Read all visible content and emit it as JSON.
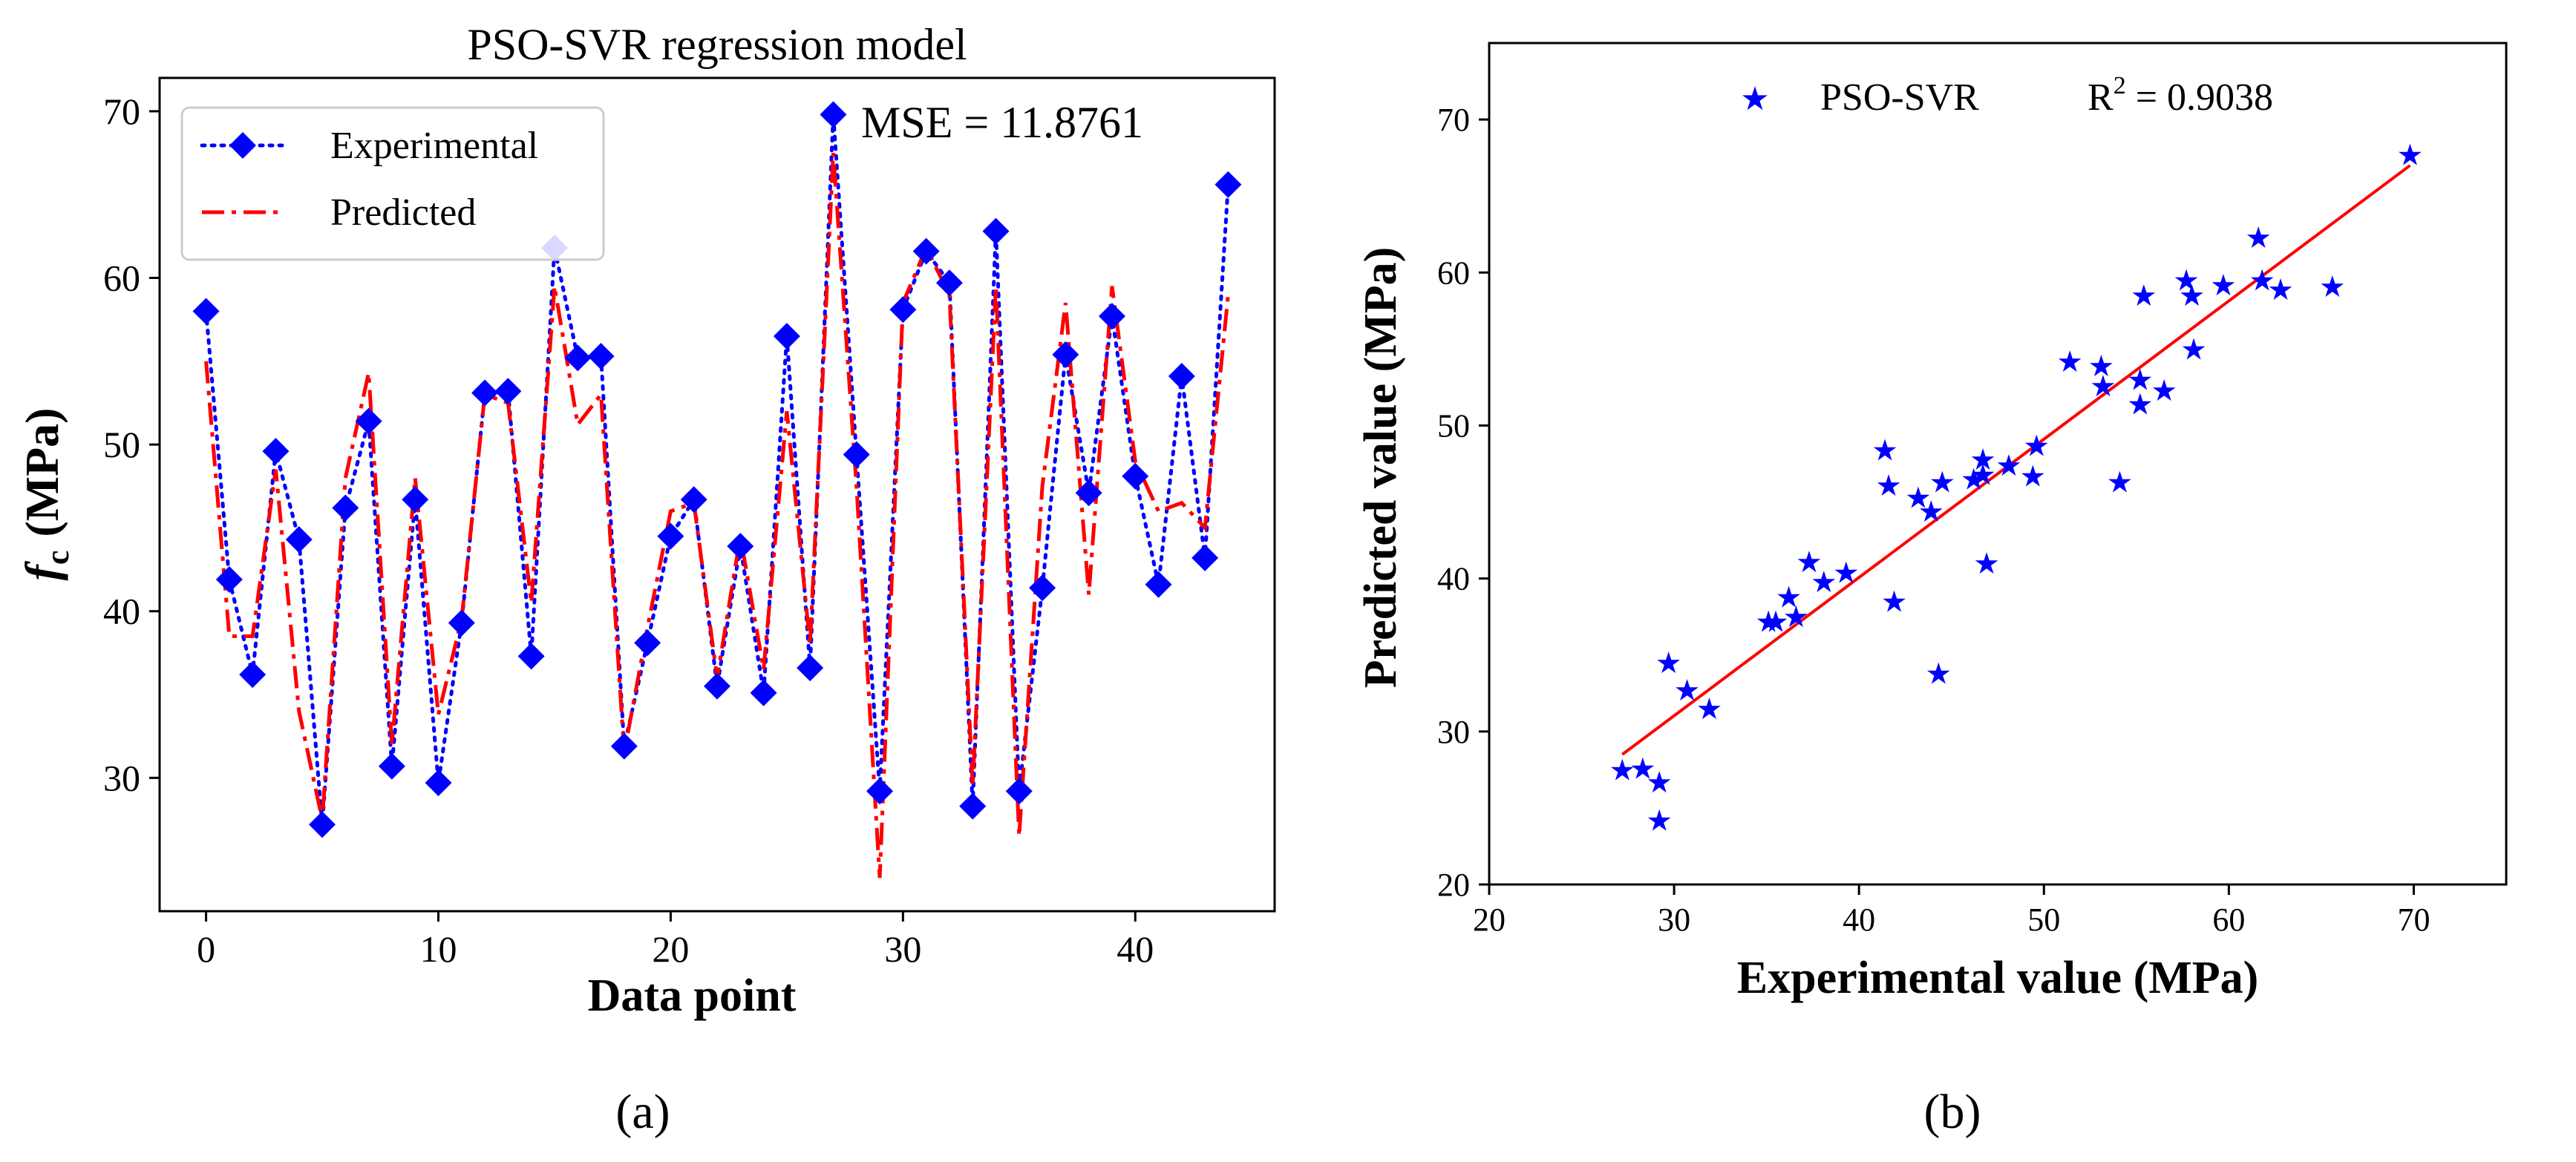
{
  "panels": {
    "a_label": "(a)",
    "b_label": "(b)"
  },
  "chart_data": [
    {
      "type": "line",
      "title": "PSO-SVR regression model",
      "xlabel": "Data point",
      "ylabel_main": "f",
      "ylabel_sub": "c",
      "ylabel_unit": "(MPa)",
      "xlim": [
        -2,
        46
      ],
      "ylim": [
        22,
        72
      ],
      "xticks": [
        0,
        10,
        20,
        30,
        40
      ],
      "yticks": [
        30,
        40,
        50,
        60,
        70
      ],
      "annotation": "MSE = 11.8761",
      "legend_position": "top-left",
      "series": [
        {
          "name": "Experimental",
          "style": "dotted-diamond",
          "color": "#0000ff",
          "values": [
            58.0,
            41.9,
            36.2,
            49.6,
            44.3,
            27.2,
            46.2,
            51.4,
            30.7,
            46.7,
            29.7,
            39.3,
            53.1,
            53.2,
            37.3,
            61.8,
            55.2,
            55.3,
            31.9,
            38.1,
            44.5,
            46.7,
            35.5,
            43.9,
            35.1,
            56.5,
            36.6,
            69.8,
            49.4,
            29.2,
            58.1,
            61.6,
            59.7,
            28.3,
            62.8,
            29.2,
            41.4,
            55.4,
            47.1,
            57.7,
            48.1,
            41.6,
            54.1,
            43.2,
            65.6
          ]
        },
        {
          "name": "Predicted",
          "style": "dash-dot",
          "color": "#ff0000",
          "values": [
            55.0,
            38.5,
            38.5,
            48.5,
            34.0,
            27.5,
            48.0,
            54.3,
            32.0,
            48.0,
            33.8,
            39.5,
            53.0,
            52.5,
            40.5,
            59.5,
            51.2,
            53.0,
            31.5,
            39.0,
            46.0,
            46.5,
            36.0,
            44.5,
            36.5,
            52.0,
            38.0,
            67.5,
            47.5,
            24.0,
            58.5,
            61.8,
            59.0,
            29.5,
            59.5,
            26.5,
            47.5,
            58.5,
            41.0,
            59.5,
            49.0,
            46.0,
            46.5,
            45.0,
            59.0
          ]
        }
      ]
    },
    {
      "type": "scatter",
      "xlabel": "Experimental value (MPa)",
      "ylabel": "Predicted value (MPa)",
      "xlim": [
        20,
        75
      ],
      "ylim": [
        20,
        75
      ],
      "xticks": [
        20,
        30,
        40,
        50,
        60,
        70
      ],
      "yticks": [
        20,
        30,
        40,
        50,
        60,
        70
      ],
      "legend_position": "top-center",
      "marker_color": "#0000ff",
      "line_color": "#ff0000",
      "fit_line": {
        "x": [
          27.2,
          69.8
        ],
        "y": [
          28.5,
          67.0
        ]
      },
      "legend": {
        "series_name": "PSO-SVR",
        "r2_label": "R",
        "r2_exp": "2",
        "r2_value": " = 0.9038"
      },
      "points": [
        [
          27.2,
          27.5
        ],
        [
          28.3,
          27.6
        ],
        [
          29.2,
          26.7
        ],
        [
          29.2,
          24.2
        ],
        [
          29.7,
          34.5
        ],
        [
          30.7,
          32.7
        ],
        [
          31.9,
          31.5
        ],
        [
          35.1,
          37.2
        ],
        [
          35.5,
          37.2
        ],
        [
          36.2,
          38.8
        ],
        [
          36.6,
          37.5
        ],
        [
          37.3,
          41.1
        ],
        [
          38.1,
          39.8
        ],
        [
          39.3,
          40.4
        ],
        [
          41.4,
          48.4
        ],
        [
          41.6,
          46.1
        ],
        [
          41.9,
          38.5
        ],
        [
          43.2,
          45.3
        ],
        [
          43.9,
          44.4
        ],
        [
          44.3,
          33.8
        ],
        [
          44.5,
          46.3
        ],
        [
          46.2,
          46.5
        ],
        [
          46.7,
          47.8
        ],
        [
          46.7,
          46.8
        ],
        [
          46.9,
          41.0
        ],
        [
          48.1,
          47.4
        ],
        [
          49.4,
          46.7
        ],
        [
          49.6,
          48.7
        ],
        [
          51.4,
          54.2
        ],
        [
          53.1,
          53.9
        ],
        [
          53.2,
          52.6
        ],
        [
          54.1,
          46.3
        ],
        [
          55.2,
          53.0
        ],
        [
          55.2,
          51.4
        ],
        [
          55.4,
          58.5
        ],
        [
          56.5,
          52.3
        ],
        [
          57.7,
          59.5
        ],
        [
          58.0,
          58.5
        ],
        [
          58.1,
          55.0
        ],
        [
          59.7,
          59.2
        ],
        [
          61.6,
          62.3
        ],
        [
          61.8,
          59.5
        ],
        [
          62.8,
          58.9
        ],
        [
          65.6,
          59.1
        ],
        [
          69.8,
          67.7
        ]
      ]
    }
  ]
}
